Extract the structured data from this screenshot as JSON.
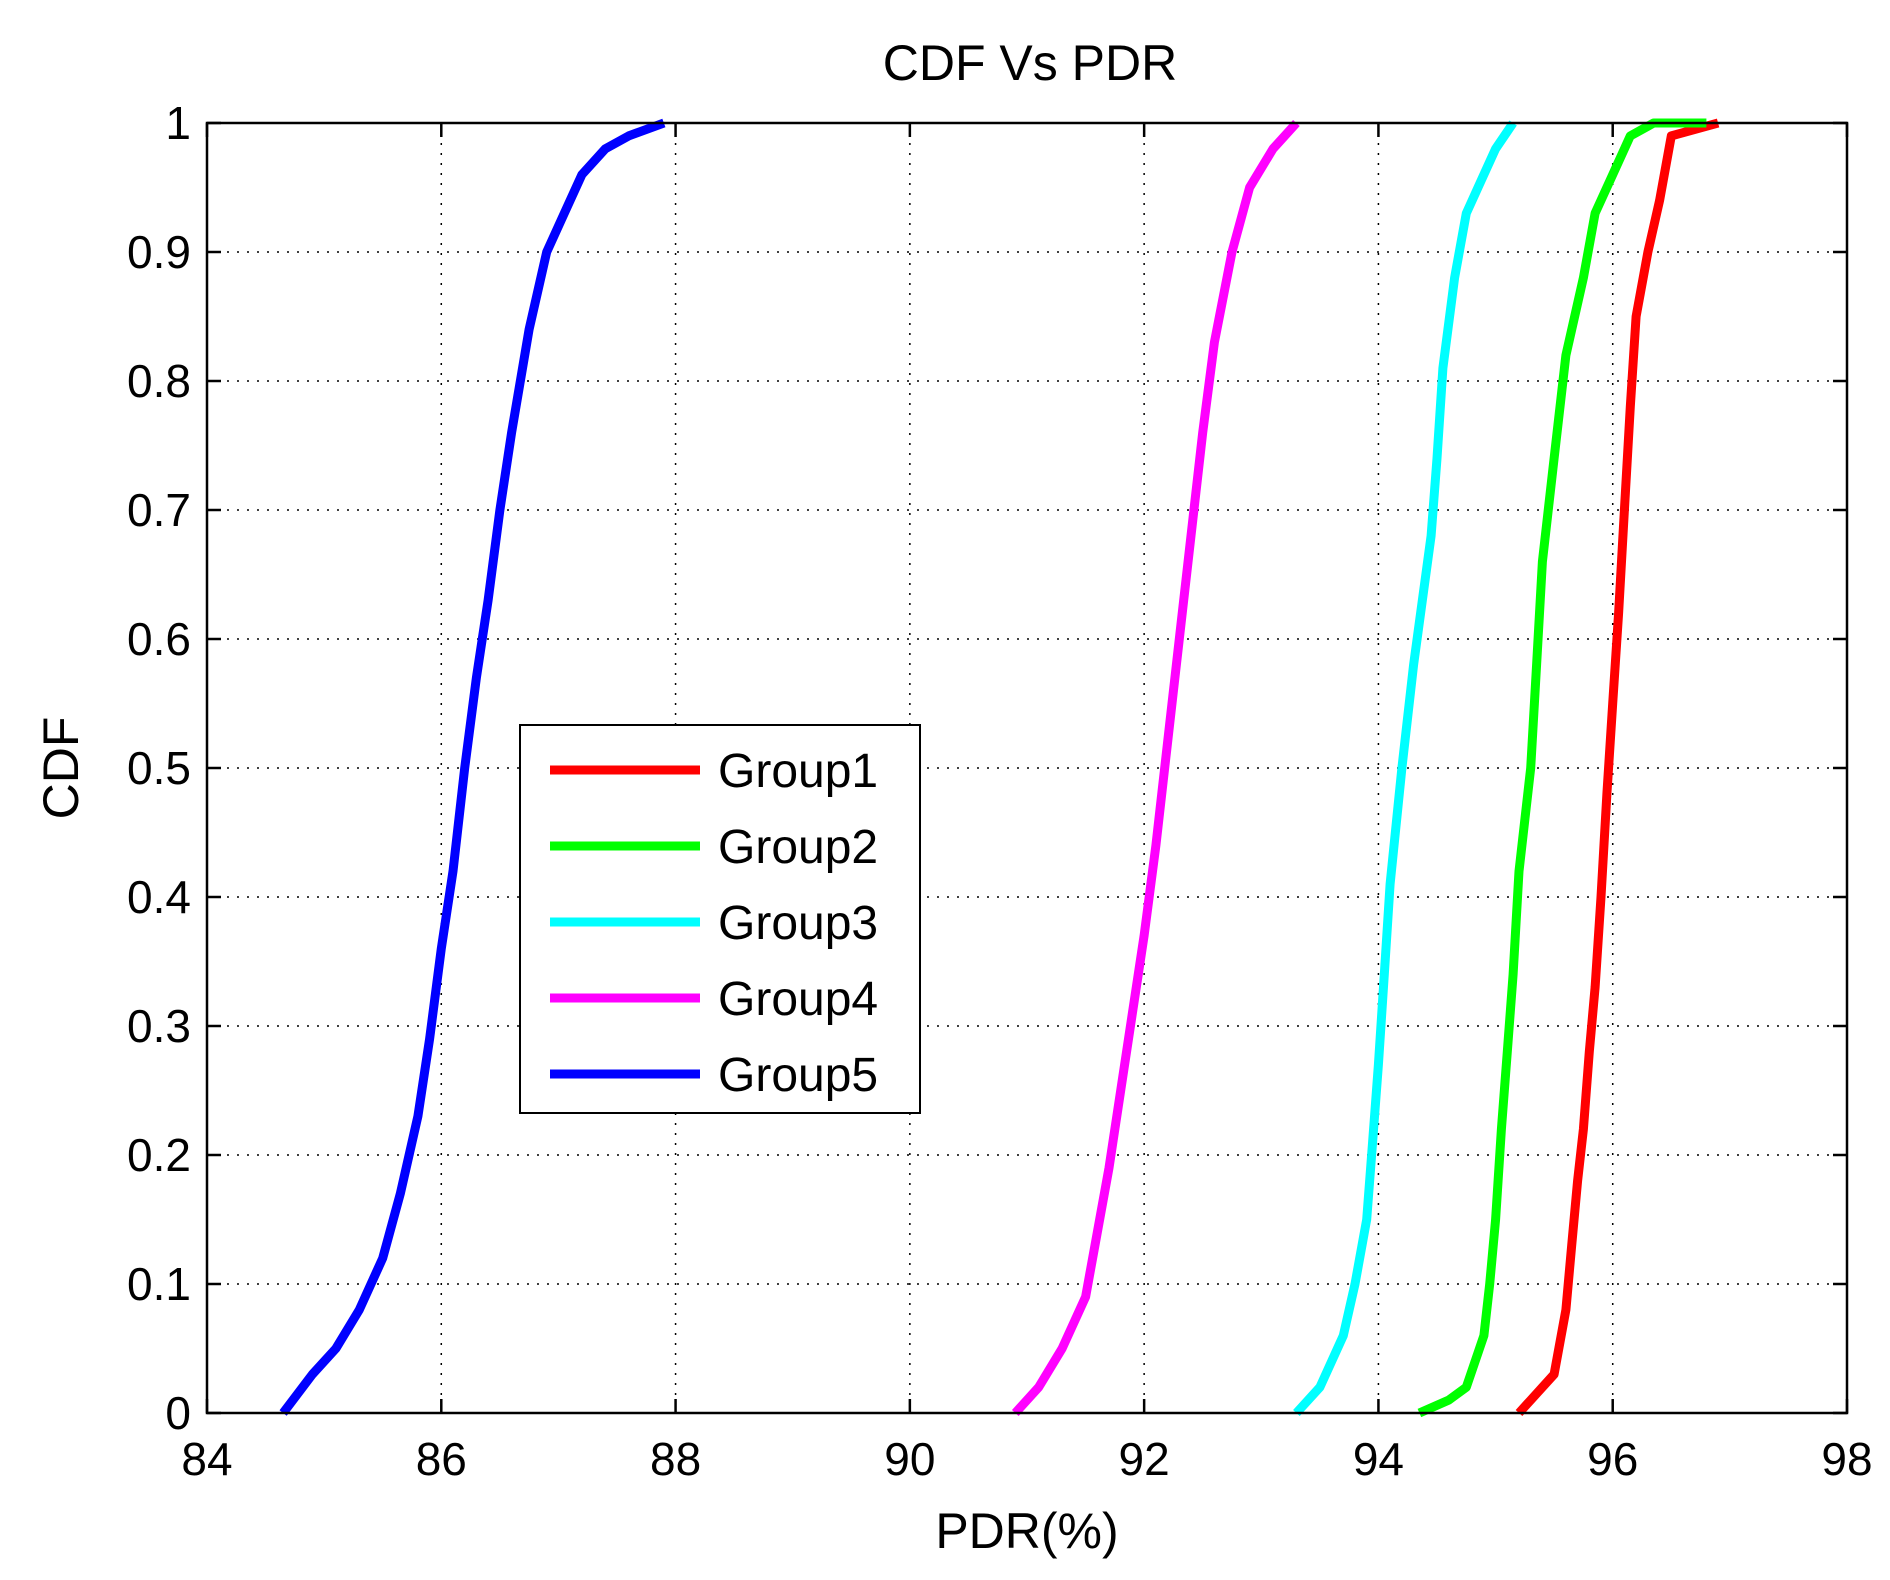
{
  "chart_data": {
    "type": "line",
    "title": "CDF Vs PDR",
    "xlabel": "PDR(%)",
    "ylabel": "CDF",
    "xlim": [
      84,
      98
    ],
    "ylim": [
      0,
      1
    ],
    "xticks": [
      84,
      86,
      88,
      90,
      92,
      94,
      96,
      98
    ],
    "xtick_labels": [
      "84",
      "86",
      "88",
      "90",
      "92",
      "94",
      "96",
      "98"
    ],
    "yticks": [
      0,
      0.1,
      0.2,
      0.3,
      0.4,
      0.5,
      0.6,
      0.7,
      0.8,
      0.9,
      1
    ],
    "ytick_labels": [
      "0",
      "0.1",
      "0.2",
      "0.3",
      "0.4",
      "0.5",
      "0.6",
      "0.7",
      "0.8",
      "0.9",
      "1"
    ],
    "grid": true,
    "legend_position": "center-left",
    "series": [
      {
        "name": "Group1",
        "color": "#ff0000",
        "x": [
          95.2,
          95.3,
          95.5,
          95.6,
          95.65,
          95.7,
          95.75,
          95.8,
          95.85,
          95.9,
          95.95,
          96.0,
          96.05,
          96.1,
          96.15,
          96.2,
          96.3,
          96.4,
          96.5,
          96.9
        ],
        "y": [
          0.0,
          0.01,
          0.03,
          0.08,
          0.13,
          0.18,
          0.22,
          0.28,
          0.33,
          0.4,
          0.48,
          0.55,
          0.62,
          0.7,
          0.78,
          0.85,
          0.9,
          0.94,
          0.99,
          1.0
        ]
      },
      {
        "name": "Group2",
        "color": "#00ff00",
        "x": [
          94.35,
          94.6,
          94.75,
          94.9,
          94.95,
          95.0,
          95.05,
          95.1,
          95.15,
          95.2,
          95.3,
          95.35,
          95.4,
          95.5,
          95.6,
          95.75,
          95.85,
          96.0,
          96.15,
          96.35,
          96.8
        ],
        "y": [
          0.0,
          0.01,
          0.02,
          0.06,
          0.1,
          0.15,
          0.22,
          0.28,
          0.34,
          0.42,
          0.5,
          0.58,
          0.66,
          0.74,
          0.82,
          0.88,
          0.93,
          0.96,
          0.99,
          1.0,
          1.0
        ]
      },
      {
        "name": "Group3",
        "color": "#00ffff",
        "x": [
          93.3,
          93.5,
          93.7,
          93.8,
          93.9,
          93.95,
          94.0,
          94.05,
          94.1,
          94.2,
          94.3,
          94.45,
          94.5,
          94.55,
          94.65,
          94.75,
          94.85,
          95.0,
          95.15
        ],
        "y": [
          0.0,
          0.02,
          0.06,
          0.1,
          0.15,
          0.21,
          0.27,
          0.34,
          0.41,
          0.5,
          0.58,
          0.68,
          0.74,
          0.81,
          0.88,
          0.93,
          0.95,
          0.98,
          1.0
        ]
      },
      {
        "name": "Group4",
        "color": "#ff00ff",
        "x": [
          90.9,
          91.1,
          91.3,
          91.5,
          91.6,
          91.7,
          91.8,
          91.9,
          92.0,
          92.1,
          92.2,
          92.3,
          92.4,
          92.5,
          92.6,
          92.75,
          92.9,
          93.1,
          93.3
        ],
        "y": [
          0.0,
          0.02,
          0.05,
          0.09,
          0.14,
          0.19,
          0.25,
          0.31,
          0.37,
          0.44,
          0.52,
          0.6,
          0.68,
          0.76,
          0.83,
          0.9,
          0.95,
          0.98,
          1.0
        ]
      },
      {
        "name": "Group5",
        "color": "#0000ff",
        "x": [
          84.65,
          84.9,
          85.1,
          85.3,
          85.5,
          85.65,
          85.8,
          85.9,
          86.0,
          86.1,
          86.2,
          86.3,
          86.4,
          86.5,
          86.6,
          86.75,
          86.9,
          87.05,
          87.2,
          87.4,
          87.6,
          87.9
        ],
        "y": [
          0.0,
          0.03,
          0.05,
          0.08,
          0.12,
          0.17,
          0.23,
          0.29,
          0.36,
          0.42,
          0.5,
          0.57,
          0.63,
          0.7,
          0.76,
          0.84,
          0.9,
          0.93,
          0.96,
          0.98,
          0.99,
          1.0
        ]
      }
    ]
  }
}
